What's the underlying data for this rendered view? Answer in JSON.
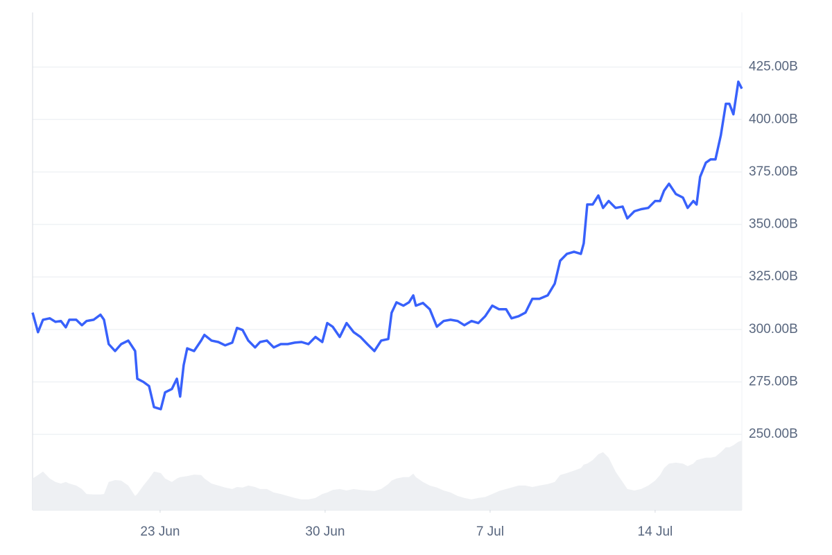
{
  "chart_data": {
    "type": "line",
    "x": [
      17.59,
      17.82,
      18.03,
      18.32,
      18.56,
      18.79,
      19.0,
      19.15,
      19.44,
      19.68,
      19.88,
      20.18,
      20.47,
      20.62,
      20.82,
      21.09,
      21.35,
      21.65,
      21.94,
      22.03,
      22.29,
      22.53,
      22.74,
      23.03,
      23.21,
      23.5,
      23.71,
      23.85,
      24.0,
      24.15,
      24.44,
      24.74,
      24.88,
      25.18,
      25.47,
      25.76,
      26.06,
      26.26,
      26.5,
      26.74,
      27.03,
      27.24,
      27.53,
      27.82,
      28.12,
      28.41,
      28.71,
      29.0,
      29.29,
      29.59,
      29.88,
      30.09,
      30.32,
      30.62,
      30.91,
      31.21,
      31.5,
      31.79,
      32.09,
      32.38,
      32.68,
      32.82,
      33.03,
      33.32,
      33.56,
      33.74,
      33.85,
      34.15,
      34.44,
      34.74,
      35.03,
      35.32,
      35.62,
      35.91,
      36.21,
      36.5,
      36.79,
      37.09,
      37.38,
      37.68,
      37.91,
      38.21,
      38.5,
      38.79,
      39.09,
      39.44,
      39.74,
      39.97,
      40.26,
      40.56,
      40.85,
      40.97,
      41.12,
      41.35,
      41.59,
      41.79,
      42.03,
      42.32,
      42.62,
      42.82,
      43.12,
      43.41,
      43.71,
      44.0,
      44.21,
      44.38,
      44.59,
      44.88,
      45.18,
      45.38,
      45.62,
      45.76,
      45.91,
      46.15,
      46.35,
      46.56,
      46.79,
      47.0,
      47.15,
      47.32,
      47.53,
      47.68
    ],
    "series": [
      {
        "color": "#3861fb",
        "values": [
          308,
          298.7,
          304.6,
          305.3,
          303.6,
          304,
          301,
          304.6,
          304.6,
          302,
          304,
          304.6,
          307,
          304.6,
          293,
          289.7,
          293,
          294.7,
          289.7,
          276.5,
          275,
          273,
          263,
          262,
          270,
          271.6,
          276.5,
          268,
          283,
          291,
          289.7,
          294.7,
          297.4,
          294.7,
          294,
          292.4,
          293.7,
          300.7,
          299.7,
          294.7,
          291.4,
          294,
          294.7,
          291.4,
          293,
          293,
          293.7,
          294,
          293,
          296.4,
          294,
          303,
          301.3,
          296.4,
          303,
          298.7,
          296.4,
          293,
          289.7,
          294.7,
          295.4,
          307.9,
          312.9,
          311.3,
          312.9,
          316.2,
          311.3,
          312.6,
          309.6,
          301.3,
          304,
          304.6,
          304,
          302,
          304,
          303,
          306.3,
          311.3,
          309.6,
          309.6,
          305.3,
          306.3,
          308,
          314.6,
          314.6,
          316.2,
          321.8,
          332.7,
          336,
          337,
          336,
          341,
          359.5,
          359.5,
          363.8,
          357.9,
          361.2,
          357.9,
          358.5,
          352.9,
          356.3,
          357.3,
          357.9,
          361.2,
          361.2,
          366.1,
          369.4,
          364.5,
          362.8,
          357.9,
          361.2,
          359.5,
          372.7,
          379.4,
          381,
          381,
          392.6,
          407.5,
          407.5,
          402.5,
          418,
          414.7
        ]
      },
      {
        "color": "#eef0f3",
        "axis": "y2",
        "values": [
          6.3,
          7.0,
          7.7,
          6.3,
          5.6,
          5.3,
          5.6,
          5.3,
          4.9,
          4.2,
          3.2,
          3.1,
          3.1,
          3.2,
          5.6,
          6.0,
          5.9,
          4.9,
          2.8,
          3.2,
          4.9,
          6.3,
          7.7,
          7.4,
          6.3,
          5.6,
          6.3,
          6.6,
          6.7,
          6.8,
          7.1,
          7.0,
          6.3,
          5.3,
          4.9,
          4.5,
          4.2,
          4.6,
          4.5,
          4.9,
          4.6,
          4.2,
          4.2,
          3.5,
          3.2,
          2.8,
          2.4,
          2.1,
          2.1,
          2.4,
          3.2,
          3.5,
          4.0,
          4.2,
          3.9,
          4.2,
          4.0,
          3.9,
          3.8,
          4.2,
          5.2,
          5.9,
          6.3,
          6.6,
          6.6,
          7.3,
          6.6,
          5.6,
          4.9,
          4.5,
          3.9,
          3.5,
          2.8,
          2.4,
          2.1,
          2.4,
          2.6,
          3.2,
          3.8,
          4.2,
          4.5,
          4.9,
          4.9,
          4.6,
          4.9,
          5.2,
          5.6,
          7.0,
          7.4,
          7.9,
          8.4,
          9.1,
          9.3,
          10.0,
          11.2,
          11.6,
          10.5,
          7.7,
          5.6,
          4.2,
          3.9,
          4.2,
          4.9,
          5.9,
          7.0,
          8.4,
          9.3,
          9.5,
          9.3,
          8.8,
          9.3,
          10.0,
          10.2,
          10.5,
          10.5,
          10.7,
          11.6,
          12.6,
          12.6,
          13.0,
          13.7,
          13.9
        ]
      }
    ],
    "xlim": [
      17.59,
      47.68
    ],
    "xticks": [
      {
        "value": 23,
        "label": "23 Jun"
      },
      {
        "value": 30,
        "label": "30 Jun"
      },
      {
        "value": 37,
        "label": "7 Jul"
      },
      {
        "value": 44,
        "label": "14 Jul"
      }
    ],
    "ylim": [
      214,
      451
    ],
    "yticks": [
      {
        "value": 250,
        "label": "250.00B"
      },
      {
        "value": 275,
        "label": "275.00B"
      },
      {
        "value": 300,
        "label": "300.00B"
      },
      {
        "value": 325,
        "label": "325.00B"
      },
      {
        "value": 350,
        "label": "350.00B"
      },
      {
        "value": 375,
        "label": "375.00B"
      },
      {
        "value": 400,
        "label": "400.00B"
      },
      {
        "value": 425,
        "label": "425.00B"
      }
    ],
    "y2lim": [
      0,
      100
    ],
    "grid": true
  }
}
